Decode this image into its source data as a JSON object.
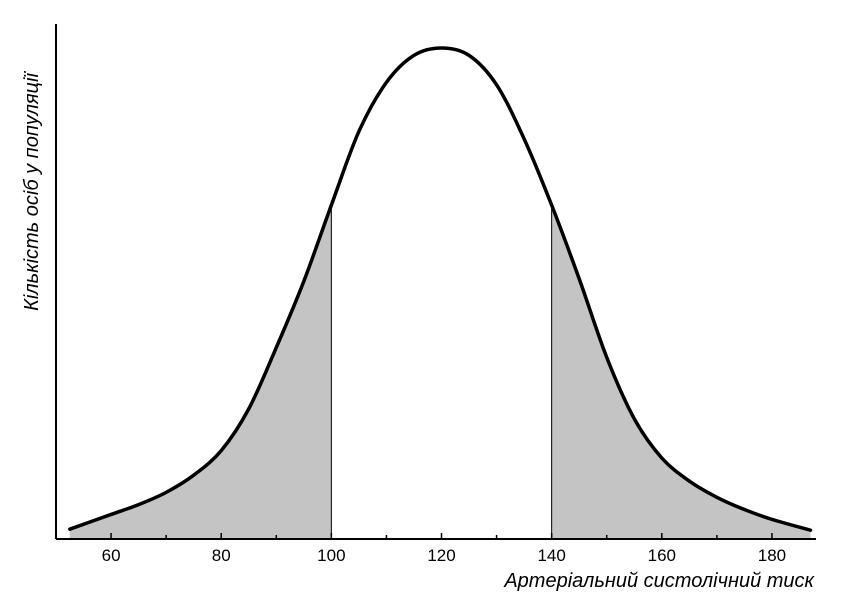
{
  "chart_data": {
    "type": "area",
    "title": "",
    "xlabel": "Артеріальний систолічний тиск",
    "ylabel": "Кількість осіб у популяції",
    "xlim": [
      50,
      188
    ],
    "ylim": [
      0,
      1
    ],
    "x_ticks": [
      60,
      80,
      100,
      120,
      140,
      160,
      180
    ],
    "x_minor_step": 10,
    "grid": false,
    "legend": "none",
    "curve": {
      "x": [
        52.5,
        60,
        65,
        70,
        75,
        80,
        85,
        90,
        95,
        100,
        105,
        110,
        115,
        120,
        125,
        130,
        135,
        140,
        145,
        150,
        155,
        160,
        165,
        170,
        175,
        180,
        187
      ],
      "y": [
        0.02,
        0.05,
        0.07,
        0.095,
        0.13,
        0.18,
        0.265,
        0.39,
        0.525,
        0.68,
        0.83,
        0.93,
        0.985,
        1.0,
        0.985,
        0.925,
        0.815,
        0.68,
        0.53,
        0.37,
        0.245,
        0.165,
        0.118,
        0.085,
        0.06,
        0.04,
        0.018
      ]
    },
    "shaded_regions": [
      {
        "from": 52.5,
        "to": 100
      },
      {
        "from": 140,
        "to": 187
      }
    ],
    "colors": {
      "curve": "#000000",
      "fill": "#c4c4c4",
      "axis": "#000000"
    }
  }
}
